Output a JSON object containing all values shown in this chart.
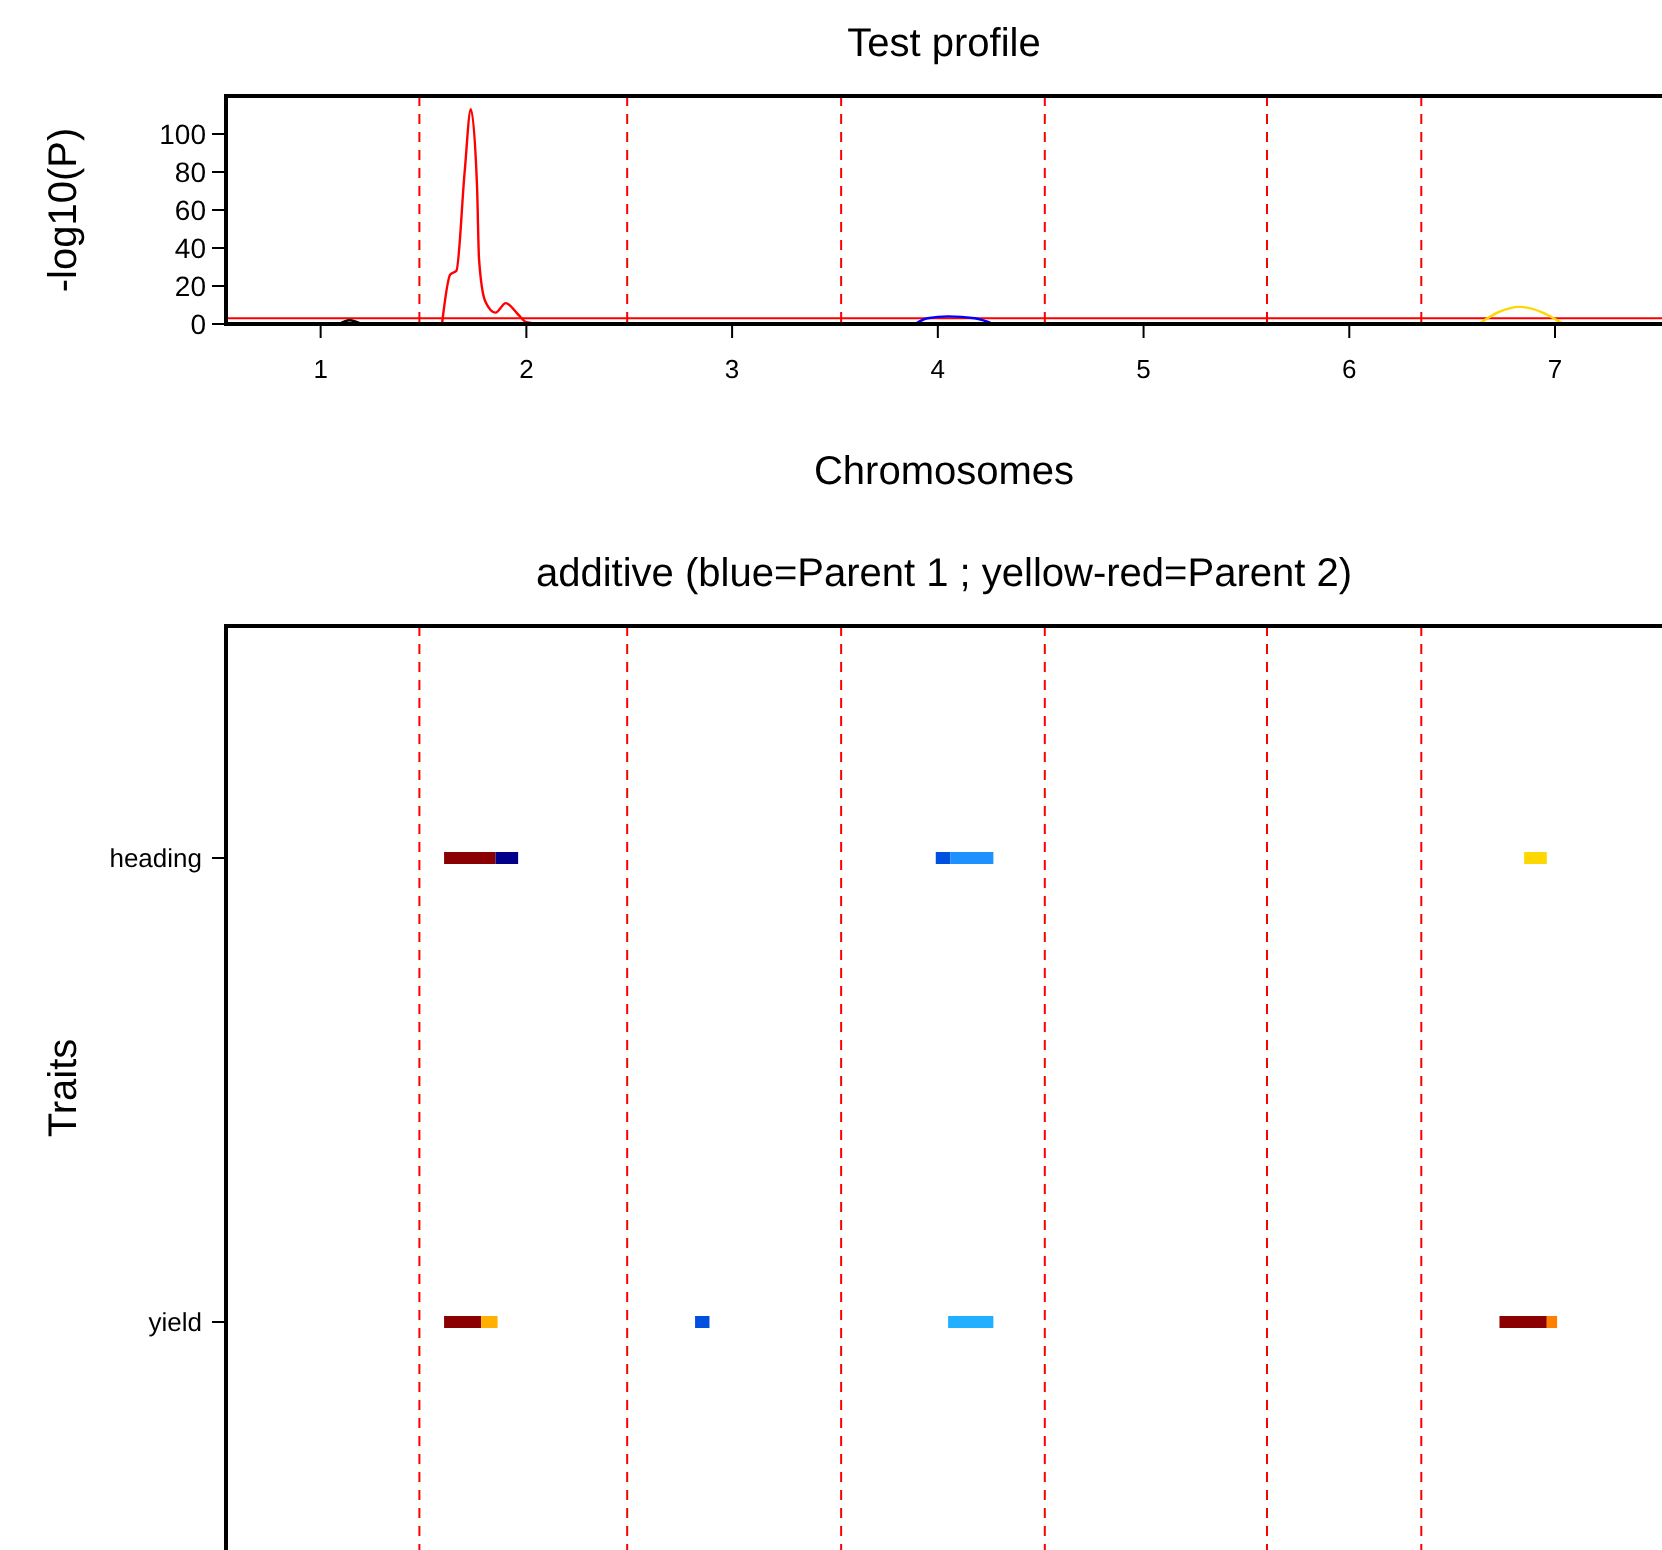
{
  "chart_data": [
    {
      "type": "line",
      "title": "Test profile",
      "xlabel": "Chromosomes",
      "ylabel": "-log10(P)",
      "xlim": [
        0.54,
        7.52
      ],
      "ylim": [
        0,
        120
      ],
      "xticks": [
        1,
        2,
        3,
        4,
        5,
        6,
        7
      ],
      "yticks": [
        0,
        20,
        40,
        60,
        80,
        100
      ],
      "marker": "none",
      "line_style": "solid",
      "series": [
        {
          "color": "#ff0000",
          "x": [
            1.59,
            1.63,
            1.66,
            1.7,
            1.73,
            1.76,
            1.77,
            1.8,
            1.85,
            1.9,
            1.96,
            2.0,
            2.07
          ],
          "values": [
            0,
            26,
            28,
            80,
            113,
            73,
            34,
            12,
            6,
            11,
            5,
            1,
            0
          ]
        },
        {
          "color": "#000000",
          "x": [
            1.09,
            1.14,
            1.2
          ],
          "values": [
            0,
            2,
            0
          ]
        },
        {
          "color": "#0000ff",
          "x": [
            3.89,
            3.95,
            4.05,
            4.18,
            4.27
          ],
          "values": [
            0,
            3,
            4,
            3,
            0
          ]
        },
        {
          "color": "#ffd700",
          "x": [
            6.63,
            6.72,
            6.83,
            6.94,
            7.04
          ],
          "values": [
            0,
            6,
            9,
            6,
            0
          ]
        }
      ],
      "ref_lines": [
        {
          "axis": "y",
          "value": 3,
          "color": "#ff0000",
          "line_style": "solid"
        },
        {
          "axis": "x",
          "value": 1.48,
          "color": "#ff0000",
          "line_style": "dashed"
        },
        {
          "axis": "x",
          "value": 2.49,
          "color": "#ff0000",
          "line_style": "dashed"
        },
        {
          "axis": "x",
          "value": 3.53,
          "color": "#ff0000",
          "line_style": "dashed"
        },
        {
          "axis": "x",
          "value": 4.52,
          "color": "#ff0000",
          "line_style": "dashed"
        },
        {
          "axis": "x",
          "value": 5.6,
          "color": "#ff0000",
          "line_style": "dashed"
        },
        {
          "axis": "x",
          "value": 6.35,
          "color": "#ff0000",
          "line_style": "dashed"
        }
      ]
    },
    {
      "type": "bar",
      "orientation": "horizontal",
      "title": "additive (blue=Parent 1 ; yellow-red=Parent 2)",
      "ylabel": "Traits",
      "categories": [
        "heading",
        "yield"
      ],
      "xlim": [
        0.54,
        7.52
      ],
      "tick_labels": "y",
      "series": [
        {
          "color": "#8b0000",
          "base": [
            1.6,
            1.6
          ],
          "values": [
            0.25,
            0.18
          ]
        },
        {
          "color": "#00008b",
          "base": [
            1.85,
            null
          ],
          "values": [
            0.11,
            null
          ]
        },
        {
          "color": "#ffb000",
          "base": [
            null,
            1.78
          ],
          "values": [
            null,
            0.08
          ]
        },
        {
          "color": "#0050e0",
          "base": [
            3.99,
            2.82
          ],
          "values": [
            0.07,
            0.07
          ]
        },
        {
          "color": "#1e90ff",
          "base": [
            4.06,
            null
          ],
          "values": [
            0.21,
            null
          ]
        },
        {
          "color": "#20b0ff",
          "base": [
            null,
            4.05
          ],
          "values": [
            null,
            0.22
          ]
        },
        {
          "color": "#ffd700",
          "base": [
            6.85,
            null
          ],
          "values": [
            0.11,
            null
          ]
        },
        {
          "color": "#8b0000",
          "base": [
            null,
            6.73
          ],
          "values": [
            null,
            0.23
          ]
        },
        {
          "color": "#ff8000",
          "base": [
            null,
            6.96
          ],
          "values": [
            null,
            0.05
          ]
        }
      ],
      "ref_lines": [
        {
          "axis": "x",
          "value": 1.48,
          "color": "#ff0000",
          "line_style": "dashed"
        },
        {
          "axis": "x",
          "value": 2.49,
          "color": "#ff0000",
          "line_style": "dashed"
        },
        {
          "axis": "x",
          "value": 3.53,
          "color": "#ff0000",
          "line_style": "dashed"
        },
        {
          "axis": "x",
          "value": 4.52,
          "color": "#ff0000",
          "line_style": "dashed"
        },
        {
          "axis": "x",
          "value": 5.6,
          "color": "#ff0000",
          "line_style": "dashed"
        },
        {
          "axis": "x",
          "value": 6.35,
          "color": "#ff0000",
          "line_style": "dashed"
        }
      ]
    }
  ]
}
